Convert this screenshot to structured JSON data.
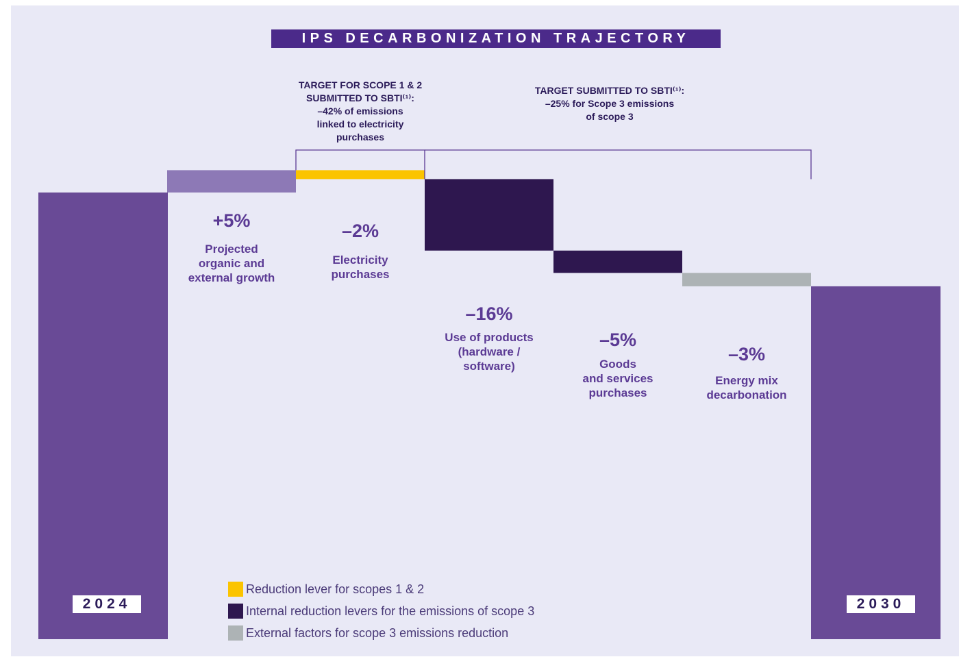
{
  "chart_data": {
    "type": "bar",
    "title": "IPS DECARBONIZATION TRAJECTORY",
    "xlabel": "",
    "ylabel": "",
    "categories": [
      "2024",
      "+5%",
      "–2%",
      "–16%",
      "–5%",
      "–3%",
      "2030"
    ],
    "ylim": [
      0,
      100
    ],
    "bars": [
      {
        "label": "2024",
        "kind": "total",
        "start": 0,
        "end": 100
      },
      {
        "value_label": "+5%",
        "text": "Projected\norganic and\nexternal growth",
        "kind": "growth",
        "start": 100,
        "end": 105
      },
      {
        "value_label": "–2%",
        "text": "Electricity\npurchases",
        "kind": "scope12",
        "start": 105,
        "end": 103
      },
      {
        "value_label": "–16%",
        "text": "Use of products\n(hardware /\nsoftware)",
        "kind": "internal3",
        "start": 103,
        "end": 87
      },
      {
        "value_label": "–5%",
        "text": "Goods\nand services\npurchases",
        "kind": "internal3",
        "start": 87,
        "end": 82
      },
      {
        "value_label": "–3%",
        "text": "Energy mix\ndecarbonation",
        "kind": "external3",
        "start": 82,
        "end": 79
      },
      {
        "label": "2030",
        "kind": "total",
        "start": 0,
        "end": 79
      }
    ],
    "annotations": [
      {
        "text": "TARGET FOR SCOPE 1 & 2\nSUBMITTED TO SBTI⁽¹⁾:\n–42% of emissions\nlinked to electricity\npurchases",
        "spans": [
          2,
          2
        ]
      },
      {
        "text": "TARGET SUBMITTED TO SBTI⁽¹⁾:\n–25% for Scope 3 emissions\nof scope 3",
        "spans": [
          3,
          5
        ]
      }
    ],
    "legend": {
      "placement": "bottom-left",
      "entries": [
        {
          "label": "Reduction lever for scopes 1 & 2",
          "color": "#fbc400"
        },
        {
          "label": "Internal reduction levers for the emissions of scope 3",
          "color": "#2e174f"
        },
        {
          "label": "External factors for scope 3 emissions reduction",
          "color": "#adb3b5"
        }
      ]
    },
    "colors": {
      "total": "#694a96",
      "growth": "#8d79b6",
      "scope12": "#fbc400",
      "internal3": "#2e174f",
      "external3": "#adb3b5",
      "bracket": "#5b3a94"
    }
  }
}
